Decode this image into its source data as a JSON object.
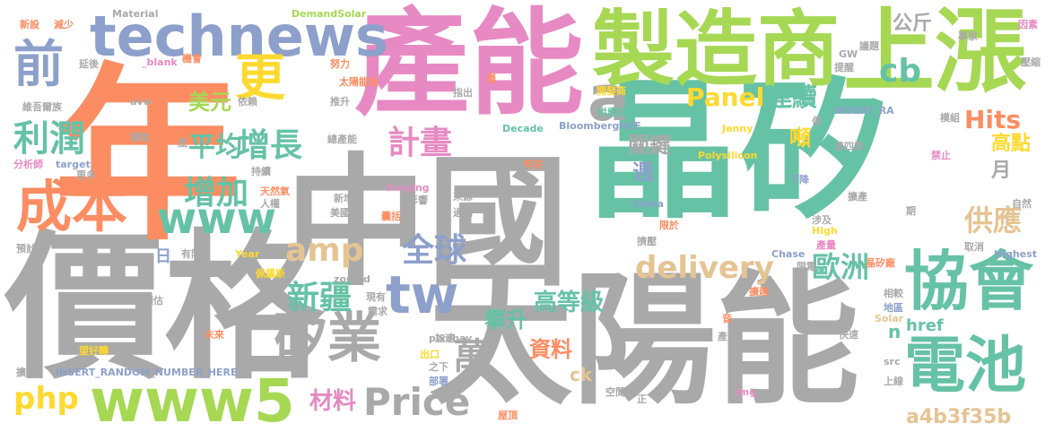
{
  "words": [
    {
      "text": "中國",
      "color": "gray"
    },
    {
      "text": "晶矽",
      "color": "teal"
    },
    {
      "text": "價格",
      "color": "gray"
    },
    {
      "text": "太陽能",
      "color": "gray"
    },
    {
      "text": "年",
      "color": "orange"
    },
    {
      "text": "產能",
      "color": "pink"
    },
    {
      "text": "製造商",
      "color": "lime"
    },
    {
      "text": "上漲",
      "color": "lime"
    },
    {
      "text": "technews",
      "color": "blue"
    },
    {
      "text": "協會",
      "color": "teal"
    },
    {
      "text": "電池",
      "color": "teal"
    },
    {
      "text": "www5",
      "color": "lime"
    },
    {
      "text": "矽業",
      "color": "gray"
    },
    {
      "text": "成本",
      "color": "orange"
    },
    {
      "text": "www",
      "color": "teal"
    },
    {
      "text": "tw",
      "color": "blue"
    },
    {
      "text": "前",
      "color": "blue"
    },
    {
      "text": "更",
      "color": "yellow"
    },
    {
      "text": "a",
      "color": "gray"
    },
    {
      "text": "Price",
      "color": "gray"
    },
    {
      "text": "delivery",
      "color": "tan"
    },
    {
      "text": "cb",
      "color": "teal"
    },
    {
      "text": "Panel",
      "color": "yellow"
    },
    {
      "text": "連續",
      "color": "teal"
    },
    {
      "text": "amp",
      "color": "tan"
    },
    {
      "text": "全球",
      "color": "blue"
    },
    {
      "text": "新疆",
      "color": "teal"
    },
    {
      "text": "增長",
      "color": "teal"
    },
    {
      "text": "增加",
      "color": "teal"
    },
    {
      "text": "利潤",
      "color": "teal"
    },
    {
      "text": "計畫",
      "color": "pink"
    },
    {
      "text": "歐洲",
      "color": "teal"
    },
    {
      "text": "萬",
      "color": "gray"
    },
    {
      "text": "php",
      "color": "yellow"
    },
    {
      "text": "a4b3f35b",
      "color": "tan"
    },
    {
      "text": "Hits",
      "color": "orange"
    },
    {
      "text": "公斤",
      "color": "gray"
    },
    {
      "text": "供應",
      "color": "tan"
    },
    {
      "text": "平均",
      "color": "teal"
    },
    {
      "text": "美元",
      "color": "lime"
    },
    {
      "text": "高等級",
      "color": "teal"
    },
    {
      "text": "攀升",
      "color": "teal"
    },
    {
      "text": "資料",
      "color": "orange"
    },
    {
      "text": "材料",
      "color": "pink"
    },
    {
      "text": "關鍵",
      "color": "gray"
    },
    {
      "text": "高點",
      "color": "yellow"
    },
    {
      "text": "月",
      "color": "gray"
    },
    {
      "text": "噸",
      "color": "yellow"
    },
    {
      "text": "週",
      "color": "blue"
    },
    {
      "text": "href",
      "color": "teal"
    },
    {
      "text": "ck",
      "color": "tan"
    },
    {
      "text": "n",
      "color": "teal"
    },
    {
      "text": "日",
      "color": "blue"
    },
    {
      "text": "新設",
      "color": "orange"
    },
    {
      "text": "減少",
      "color": "orange"
    },
    {
      "text": "Material",
      "color": "gray"
    },
    {
      "text": "DemandSolar",
      "color": "lime"
    },
    {
      "text": "延後",
      "color": "gray"
    },
    {
      "text": "_blank",
      "color": "pink"
    },
    {
      "text": "機會",
      "color": "orange"
    },
    {
      "text": "努力",
      "color": "orange"
    },
    {
      "text": "太陽能板",
      "color": "orange"
    },
    {
      "text": "維吾爾族",
      "color": "gray"
    },
    {
      "text": "avw",
      "color": "gray"
    },
    {
      "text": "依賴",
      "color": "gray"
    },
    {
      "text": "推升",
      "color": "gray"
    },
    {
      "text": "指出",
      "color": "gray"
    },
    {
      "text": "開發商",
      "color": "yellow"
    },
    {
      "text": "供應鏈",
      "color": "teal"
    },
    {
      "text": "BloombergNEF",
      "color": "blue"
    },
    {
      "text": "Decade",
      "color": "teal"
    },
    {
      "text": "Jenny",
      "color": "yellow"
    },
    {
      "text": "INSERT_RA",
      "color": "blue"
    },
    {
      "text": "模組",
      "color": "gray"
    },
    {
      "text": "導致",
      "color": "gray"
    },
    {
      "text": "底",
      "color": "gray"
    },
    {
      "text": "總產能",
      "color": "gray"
    },
    {
      "text": "分析師",
      "color": "pink"
    },
    {
      "text": "target",
      "color": "blue"
    },
    {
      "text": "更多",
      "color": "gray"
    },
    {
      "text": "持續",
      "color": "gray"
    },
    {
      "text": "天然氣",
      "color": "orange"
    },
    {
      "text": "公布",
      "color": "gray"
    },
    {
      "text": "國",
      "color": "gray"
    },
    {
      "text": "年初",
      "color": "orange"
    },
    {
      "text": "Polysilicon",
      "color": "yellow"
    },
    {
      "text": "第四季",
      "color": "gray"
    },
    {
      "text": "禁止",
      "color": "pink"
    },
    {
      "text": "下降",
      "color": "blue"
    },
    {
      "text": "人權",
      "color": "gray"
    },
    {
      "text": "新增",
      "color": "gray"
    },
    {
      "text": "Surging",
      "color": "pink"
    },
    {
      "text": "影響",
      "color": "gray"
    },
    {
      "text": "來源",
      "color": "gray"
    },
    {
      "text": "美國",
      "color": "gray"
    },
    {
      "text": "囊括",
      "color": "orange"
    },
    {
      "text": "過剩",
      "color": "gray"
    },
    {
      "text": "China",
      "color": "blue"
    },
    {
      "text": "限於",
      "color": "orange"
    },
    {
      "text": "涉及",
      "color": "gray"
    },
    {
      "text": "擴產",
      "color": "gray"
    },
    {
      "text": "期",
      "color": "gray"
    },
    {
      "text": "自然",
      "color": "gray"
    },
    {
      "text": "預計",
      "color": "gray"
    },
    {
      "text": "裝置量",
      "color": "gray"
    },
    {
      "text": "有限",
      "color": "gray"
    },
    {
      "text": "Year",
      "color": "yellow"
    },
    {
      "text": "擠壓",
      "color": "gray"
    },
    {
      "text": "High",
      "color": "yellow"
    },
    {
      "text": "產量",
      "color": "pink"
    },
    {
      "text": "取消",
      "color": "gray"
    },
    {
      "text": "Highest",
      "color": "blue"
    },
    {
      "text": "佩羅斯",
      "color": "yellow"
    },
    {
      "text": "zoneid",
      "color": "gray"
    },
    {
      "text": "Chase",
      "color": "blue"
    },
    {
      "text": "限電",
      "color": "gray"
    },
    {
      "text": "晶矽廠",
      "color": "orange"
    },
    {
      "text": "預估",
      "color": "gray"
    },
    {
      "text": "現有",
      "color": "gray"
    },
    {
      "text": "需求",
      "color": "gray"
    },
    {
      "text": "pixabay",
      "color": "gray"
    },
    {
      "text": "擴建",
      "color": "orange"
    },
    {
      "text": "相較",
      "color": "gray"
    },
    {
      "text": "地區",
      "color": "blue"
    },
    {
      "text": "未來",
      "color": "orange"
    },
    {
      "text": "加速",
      "color": "gray"
    },
    {
      "text": "音",
      "color": "orange"
    },
    {
      "text": "快速",
      "color": "gray"
    },
    {
      "text": "Solar",
      "color": "tan"
    },
    {
      "text": "望好轉",
      "color": "yellow"
    },
    {
      "text": "INSERT_RANDOM_NUMBER_HERE",
      "color": "blue"
    },
    {
      "text": "出口",
      "color": "yellow"
    },
    {
      "text": "產品",
      "color": "gray"
    },
    {
      "text": "擴張",
      "color": "gray"
    },
    {
      "text": "之下",
      "color": "gray"
    },
    {
      "text": "部署",
      "color": "blue"
    },
    {
      "text": "空間",
      "color": "gray"
    },
    {
      "text": "img",
      "color": "pink"
    },
    {
      "text": "src",
      "color": "gray"
    },
    {
      "text": "上線",
      "color": "gray"
    },
    {
      "text": "屋頂",
      "color": "orange"
    },
    {
      "text": "正",
      "color": "gray"
    },
    {
      "text": "GW",
      "color": "gray"
    },
    {
      "text": "提醒",
      "color": "gray"
    },
    {
      "text": "議題",
      "color": "gray"
    },
    {
      "text": "專家",
      "color": "gray"
    },
    {
      "text": "因素",
      "color": "pink"
    },
    {
      "text": "壓縮",
      "color": "gray"
    },
    {
      "text": "僅",
      "color": "orange"
    },
    {
      "text": "便",
      "color": "gray"
    }
  ]
}
